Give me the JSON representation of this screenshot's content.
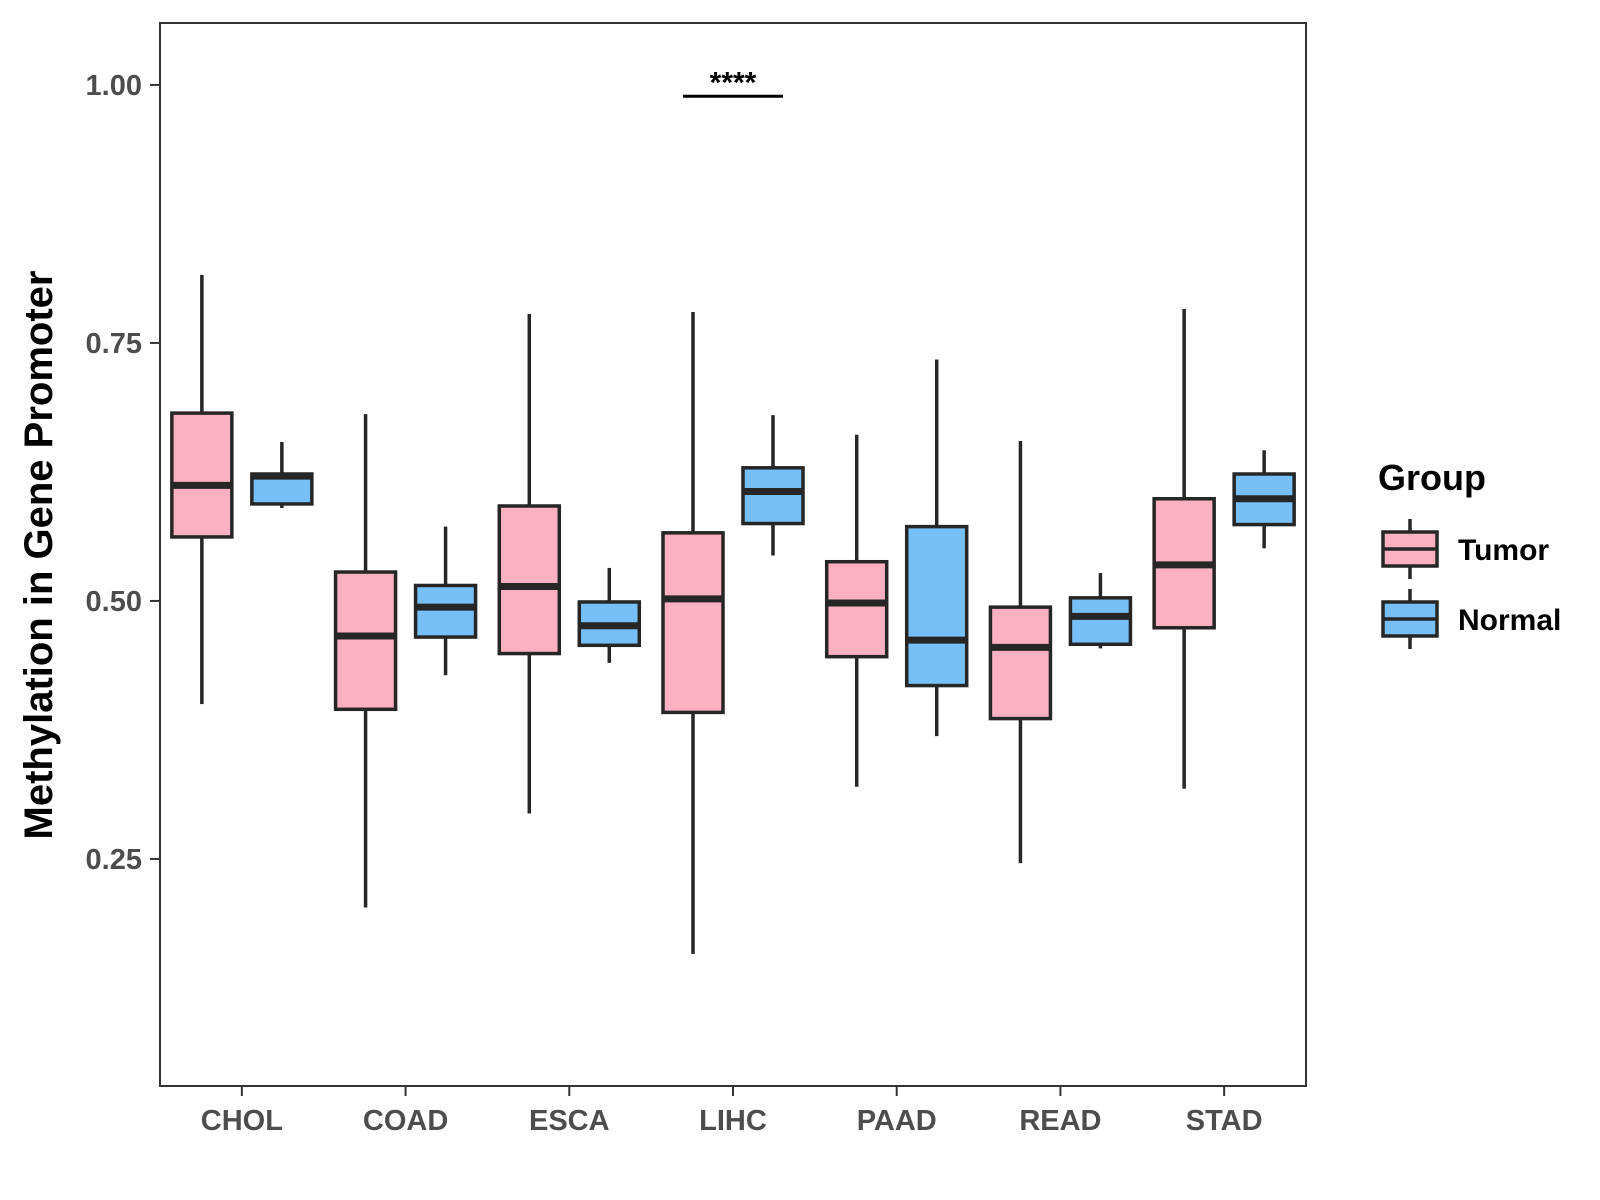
{
  "chart_data": {
    "type": "boxplot",
    "title": "",
    "xlabel": "",
    "ylabel": "Methylation in Gene Promoter",
    "ylim": [
      0.03,
      1.06
    ],
    "yticks": [
      0.25,
      0.5,
      0.75,
      1.0
    ],
    "ytick_labels": [
      "0.25",
      "0.50",
      "0.75",
      "1.00"
    ],
    "categories": [
      "CHOL",
      "COAD",
      "ESCA",
      "LIHC",
      "PAAD",
      "READ",
      "STAD"
    ],
    "legend": {
      "title": "Group",
      "position": "right",
      "entries": [
        {
          "name": "Tumor",
          "color": "#FBB1C2"
        },
        {
          "name": "Normal",
          "color": "#76BFF7"
        }
      ]
    },
    "series": [
      {
        "name": "Tumor",
        "color": "#FBB1C2",
        "boxes": [
          {
            "category": "CHOL",
            "min": 0.4,
            "q1": 0.562,
            "median": 0.612,
            "q3": 0.682,
            "max": 0.816
          },
          {
            "category": "COAD",
            "min": 0.203,
            "q1": 0.395,
            "median": 0.466,
            "q3": 0.528,
            "max": 0.681
          },
          {
            "category": "ESCA",
            "min": 0.294,
            "q1": 0.449,
            "median": 0.514,
            "q3": 0.592,
            "max": 0.778
          },
          {
            "category": "LIHC",
            "min": 0.158,
            "q1": 0.392,
            "median": 0.502,
            "q3": 0.566,
            "max": 0.78
          },
          {
            "category": "PAAD",
            "min": 0.32,
            "q1": 0.446,
            "median": 0.498,
            "q3": 0.538,
            "max": 0.661
          },
          {
            "category": "READ",
            "min": 0.246,
            "q1": 0.386,
            "median": 0.455,
            "q3": 0.494,
            "max": 0.655
          },
          {
            "category": "STAD",
            "min": 0.318,
            "q1": 0.474,
            "median": 0.535,
            "q3": 0.599,
            "max": 0.783
          }
        ]
      },
      {
        "name": "Normal",
        "color": "#76BFF7",
        "boxes": [
          {
            "category": "CHOL",
            "min": 0.59,
            "q1": 0.594,
            "median": 0.621,
            "q3": 0.623,
            "max": 0.654
          },
          {
            "category": "COAD",
            "min": 0.428,
            "q1": 0.465,
            "median": 0.494,
            "q3": 0.515,
            "max": 0.572
          },
          {
            "category": "ESCA",
            "min": 0.44,
            "q1": 0.457,
            "median": 0.476,
            "q3": 0.499,
            "max": 0.532
          },
          {
            "category": "LIHC",
            "min": 0.544,
            "q1": 0.575,
            "median": 0.606,
            "q3": 0.629,
            "max": 0.68
          },
          {
            "category": "PAAD",
            "min": 0.369,
            "q1": 0.418,
            "median": 0.462,
            "q3": 0.572,
            "max": 0.734
          },
          {
            "category": "READ",
            "min": 0.454,
            "q1": 0.458,
            "median": 0.485,
            "q3": 0.503,
            "max": 0.527
          },
          {
            "category": "STAD",
            "min": 0.551,
            "q1": 0.574,
            "median": 0.599,
            "q3": 0.623,
            "max": 0.646
          }
        ]
      }
    ],
    "annotations": [
      {
        "category": "LIHC",
        "text": "****",
        "y": 0.989
      }
    ]
  }
}
